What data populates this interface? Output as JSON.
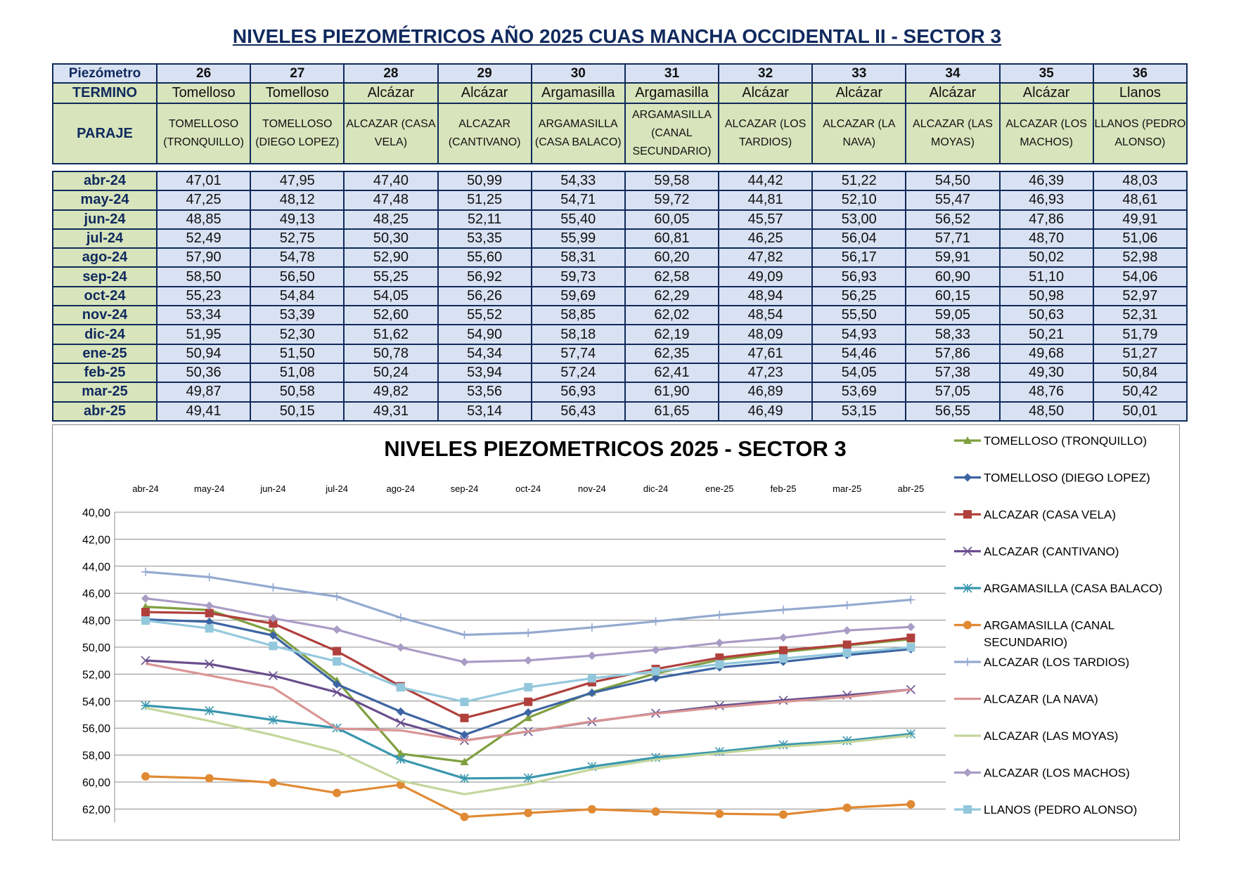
{
  "title": "NIVELES PIEZOMÉTRICOS AÑO 2025 CUAS MANCHA OCCIDENTAL II - SECTOR 3",
  "table": {
    "row_labels": {
      "piezometro": "Piezómetro",
      "termino": "TERMINO",
      "paraje": "PARAJE"
    },
    "piezometros": [
      "26",
      "27",
      "28",
      "29",
      "30",
      "31",
      "32",
      "33",
      "34",
      "35",
      "36"
    ],
    "terminos": [
      "Tomelloso",
      "Tomelloso",
      "Alcázar",
      "Alcázar",
      "Argamasilla",
      "Argamasilla",
      "Alcázar",
      "Alcázar",
      "Alcázar",
      "Alcázar",
      "Llanos"
    ],
    "parajes": [
      "TOMELLOSO (TRONQUILLO)",
      "TOMELLOSO (DIEGO LOPEZ)",
      "ALCAZAR (CASA VELA)",
      "ALCAZAR (CANTIVANO)",
      "ARGAMASILLA (CASA BALACO)",
      "ARGAMASILLA (CANAL SECUNDARIO)",
      "ALCAZAR (LOS TARDIOS)",
      "ALCAZAR (LA NAVA)",
      "ALCAZAR (LAS MOYAS)",
      "ALCAZAR (LOS MACHOS)",
      "LLANOS (PEDRO ALONSO)"
    ],
    "rows": [
      [
        "abr-24",
        "47,01",
        "47,95",
        "47,40",
        "50,99",
        "54,33",
        "59,58",
        "44,42",
        "51,22",
        "54,50",
        "46,39",
        "48,03"
      ],
      [
        "may-24",
        "47,25",
        "48,12",
        "47,48",
        "51,25",
        "54,71",
        "59,72",
        "44,81",
        "52,10",
        "55,47",
        "46,93",
        "48,61"
      ],
      [
        "jun-24",
        "48,85",
        "49,13",
        "48,25",
        "52,11",
        "55,40",
        "60,05",
        "45,57",
        "53,00",
        "56,52",
        "47,86",
        "49,91"
      ],
      [
        "jul-24",
        "52,49",
        "52,75",
        "50,30",
        "53,35",
        "55,99",
        "60,81",
        "46,25",
        "56,04",
        "57,71",
        "48,70",
        "51,06"
      ],
      [
        "ago-24",
        "57,90",
        "54,78",
        "52,90",
        "55,60",
        "58,31",
        "60,20",
        "47,82",
        "56,17",
        "59,91",
        "50,02",
        "52,98"
      ],
      [
        "sep-24",
        "58,50",
        "56,50",
        "55,25",
        "56,92",
        "59,73",
        "62,58",
        "49,09",
        "56,93",
        "60,90",
        "51,10",
        "54,06"
      ],
      [
        "oct-24",
        "55,23",
        "54,84",
        "54,05",
        "56,26",
        "59,69",
        "62,29",
        "48,94",
        "56,25",
        "60,15",
        "50,98",
        "52,97"
      ],
      [
        "nov-24",
        "53,34",
        "53,39",
        "52,60",
        "55,52",
        "58,85",
        "62,02",
        "48,54",
        "55,50",
        "59,05",
        "50,63",
        "52,31"
      ],
      [
        "dic-24",
        "51,95",
        "52,30",
        "51,62",
        "54,90",
        "58,18",
        "62,19",
        "48,09",
        "54,93",
        "58,33",
        "50,21",
        "51,79"
      ],
      [
        "ene-25",
        "50,94",
        "51,50",
        "50,78",
        "54,34",
        "57,74",
        "62,35",
        "47,61",
        "54,46",
        "57,86",
        "49,68",
        "51,27"
      ],
      [
        "feb-25",
        "50,36",
        "51,08",
        "50,24",
        "53,94",
        "57,24",
        "62,41",
        "47,23",
        "54,05",
        "57,38",
        "49,30",
        "50,84"
      ],
      [
        "mar-25",
        "49,87",
        "50,58",
        "49,82",
        "53,56",
        "56,93",
        "61,90",
        "46,89",
        "53,69",
        "57,05",
        "48,76",
        "50,42"
      ],
      [
        "abr-25",
        "49,41",
        "50,15",
        "49,31",
        "53,14",
        "56,43",
        "61,65",
        "46,49",
        "53,15",
        "56,55",
        "48,50",
        "50,01"
      ]
    ]
  },
  "chart_data": {
    "type": "line",
    "title": "NIVELES PIEZOMETRICOS 2025 - SECTOR 3",
    "categories": [
      "abr-24",
      "may-24",
      "jun-24",
      "jul-24",
      "ago-24",
      "sep-24",
      "oct-24",
      "nov-24",
      "dic-24",
      "ene-25",
      "feb-25",
      "mar-25",
      "abr-25"
    ],
    "ylim": [
      40,
      63
    ],
    "y_reversed": true,
    "y_ticks": [
      "40,00",
      "42,00",
      "44,00",
      "46,00",
      "48,00",
      "50,00",
      "52,00",
      "54,00",
      "56,00",
      "58,00",
      "60,00",
      "62,00"
    ],
    "x_axis_position": "top",
    "grid": true,
    "legend": "right",
    "series": [
      {
        "name": "TOMELLOSO (TRONQUILLO)",
        "color": "#7f9f3f",
        "marker": "triangle",
        "values": [
          47.01,
          47.25,
          48.85,
          52.49,
          57.9,
          58.5,
          55.23,
          53.34,
          51.95,
          50.94,
          50.36,
          49.87,
          49.41
        ]
      },
      {
        "name": "TOMELLOSO (DIEGO LOPEZ)",
        "color": "#3d65a3",
        "marker": "diamond",
        "values": [
          47.95,
          48.12,
          49.13,
          52.75,
          54.78,
          56.5,
          54.84,
          53.39,
          52.3,
          51.5,
          51.08,
          50.58,
          50.15
        ]
      },
      {
        "name": "ALCAZAR (CASA VELA)",
        "color": "#b0403c",
        "marker": "square",
        "values": [
          47.4,
          47.48,
          48.25,
          50.3,
          52.9,
          55.25,
          54.05,
          52.6,
          51.62,
          50.78,
          50.24,
          49.82,
          49.31
        ]
      },
      {
        "name": "ALCAZAR (CANTIVANO)",
        "color": "#6a4f8e",
        "marker": "x",
        "values": [
          50.99,
          51.25,
          52.11,
          53.35,
          55.6,
          56.92,
          56.26,
          55.52,
          54.9,
          54.34,
          53.94,
          53.56,
          53.14
        ]
      },
      {
        "name": "ARGAMASILLA (CASA BALACO)",
        "color": "#3a97ae",
        "marker": "star",
        "values": [
          54.33,
          54.71,
          55.4,
          55.99,
          58.31,
          59.73,
          59.69,
          58.85,
          58.18,
          57.74,
          57.24,
          56.93,
          56.43
        ]
      },
      {
        "name": "ARGAMASILLA (CANAL SECUNDARIO)",
        "color": "#e08a34",
        "marker": "circle",
        "values": [
          59.58,
          59.72,
          60.05,
          60.81,
          60.2,
          62.58,
          62.29,
          62.02,
          62.19,
          62.35,
          62.41,
          61.9,
          61.65
        ]
      },
      {
        "name": "ALCAZAR (LOS TARDIOS)",
        "color": "#94a9d0",
        "marker": "plus",
        "values": [
          44.42,
          44.81,
          45.57,
          46.25,
          47.82,
          49.09,
          48.94,
          48.54,
          48.09,
          47.61,
          47.23,
          46.89,
          46.49
        ]
      },
      {
        "name": "ALCAZAR (LA NAVA)",
        "color": "#d99594",
        "marker": "none",
        "values": [
          51.22,
          52.1,
          53.0,
          56.04,
          56.17,
          56.93,
          56.25,
          55.5,
          54.93,
          54.46,
          54.05,
          53.69,
          53.15
        ]
      },
      {
        "name": "ALCAZAR (LAS MOYAS)",
        "color": "#c3d69b",
        "marker": "none",
        "values": [
          54.5,
          55.47,
          56.52,
          57.71,
          59.91,
          60.9,
          60.15,
          59.05,
          58.33,
          57.86,
          57.38,
          57.05,
          56.55
        ]
      },
      {
        "name": "ALCAZAR (LOS MACHOS)",
        "color": "#a99cc5",
        "marker": "diamond",
        "values": [
          46.39,
          46.93,
          47.86,
          48.7,
          50.02,
          51.1,
          50.98,
          50.63,
          50.21,
          49.68,
          49.3,
          48.76,
          48.5
        ]
      },
      {
        "name": "LLANOS (PEDRO ALONSO)",
        "color": "#93c8dc",
        "marker": "square",
        "values": [
          48.03,
          48.61,
          49.91,
          51.06,
          52.98,
          54.06,
          52.97,
          52.31,
          51.79,
          51.27,
          50.84,
          50.42,
          50.01
        ]
      }
    ]
  }
}
